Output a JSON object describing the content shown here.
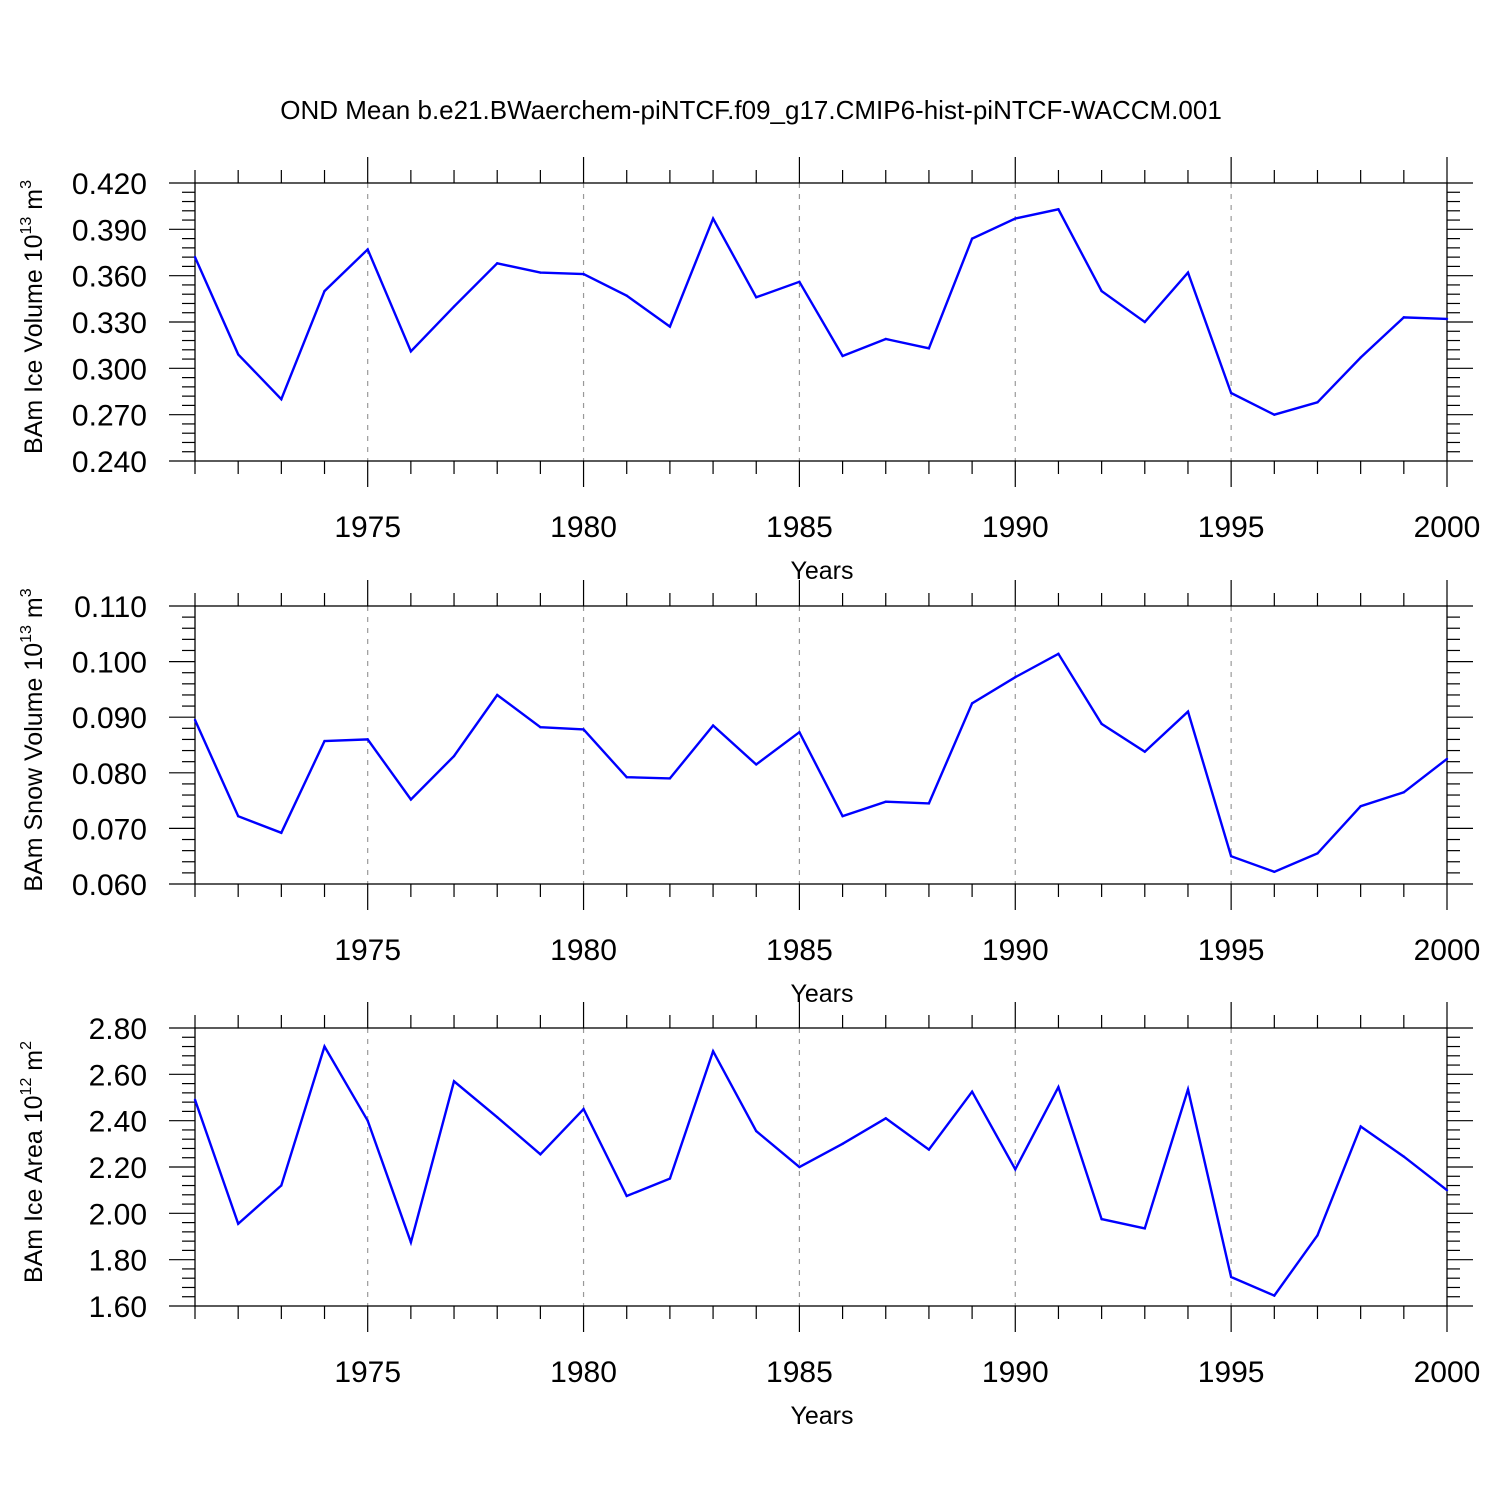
{
  "figure_title": "OND Mean b.e21.BWaerchem-piNTCF.f09_g17.CMIP6-hist-piNTCF-WACCM.001",
  "colors": {
    "series": "#0000ff",
    "axes": "#000000",
    "grid": "#999999"
  },
  "chart_data": [
    {
      "type": "line",
      "title": "",
      "xlabel": "Years",
      "ylabel": {
        "text": "BAm Ice Volume 10",
        "exp": "13",
        "unit": " m",
        "unit_exp": "3"
      },
      "x": [
        1971,
        1972,
        1973,
        1974,
        1975,
        1976,
        1977,
        1978,
        1979,
        1980,
        1981,
        1982,
        1983,
        1984,
        1985,
        1986,
        1987,
        1988,
        1989,
        1990,
        1991,
        1992,
        1993,
        1994,
        1995,
        1996,
        1997,
        1998,
        1999,
        2000
      ],
      "values": [
        0.372,
        0.309,
        0.28,
        0.35,
        0.377,
        0.311,
        0.34,
        0.368,
        0.362,
        0.361,
        0.347,
        0.327,
        0.397,
        0.346,
        0.356,
        0.308,
        0.319,
        0.313,
        0.384,
        0.397,
        0.403,
        0.35,
        0.33,
        0.362,
        0.284,
        0.27,
        0.278,
        0.307,
        0.333,
        0.332
      ],
      "xlim": [
        1971,
        2000
      ],
      "ylim": [
        0.24,
        0.42
      ],
      "yticks": [
        "0.420",
        "0.390",
        "0.360",
        "0.330",
        "0.300",
        "0.270",
        "0.240"
      ],
      "ytick_values": [
        0.42,
        0.39,
        0.36,
        0.33,
        0.3,
        0.27,
        0.24
      ],
      "xticks": [
        "1975",
        "1980",
        "1985",
        "1990",
        "1995",
        "2000"
      ],
      "xtick_values": [
        1975,
        1980,
        1985,
        1990,
        1995,
        2000
      ],
      "grid": "vertical dashed at labeled years"
    },
    {
      "type": "line",
      "title": "",
      "xlabel": "Years",
      "ylabel": {
        "text": "BAm Snow Volume 10",
        "exp": "13",
        "unit": " m",
        "unit_exp": "3"
      },
      "x": [
        1971,
        1972,
        1973,
        1974,
        1975,
        1976,
        1977,
        1978,
        1979,
        1980,
        1981,
        1982,
        1983,
        1984,
        1985,
        1986,
        1987,
        1988,
        1989,
        1990,
        1991,
        1992,
        1993,
        1994,
        1995,
        1996,
        1997,
        1998,
        1999,
        2000
      ],
      "values": [
        0.0895,
        0.0722,
        0.0692,
        0.0857,
        0.086,
        0.0752,
        0.083,
        0.094,
        0.0882,
        0.0878,
        0.0792,
        0.079,
        0.0885,
        0.0815,
        0.0873,
        0.0722,
        0.0748,
        0.0745,
        0.0925,
        0.0972,
        0.1014,
        0.0888,
        0.0838,
        0.091,
        0.065,
        0.0622,
        0.0655,
        0.074,
        0.0765,
        0.0825
      ],
      "xlim": [
        1971,
        2000
      ],
      "ylim": [
        0.06,
        0.11
      ],
      "yticks": [
        "0.110",
        "0.100",
        "0.090",
        "0.080",
        "0.070",
        "0.060"
      ],
      "ytick_values": [
        0.11,
        0.1,
        0.09,
        0.08,
        0.07,
        0.06
      ],
      "xticks": [
        "1975",
        "1980",
        "1985",
        "1990",
        "1995",
        "2000"
      ],
      "xtick_values": [
        1975,
        1980,
        1985,
        1990,
        1995,
        2000
      ],
      "grid": "vertical dashed at labeled years"
    },
    {
      "type": "line",
      "title": "",
      "xlabel": "Years",
      "ylabel": {
        "text": "BAm Ice Area 10",
        "exp": "12",
        "unit": " m",
        "unit_exp": "2"
      },
      "x": [
        1971,
        1972,
        1973,
        1974,
        1975,
        1976,
        1977,
        1978,
        1979,
        1980,
        1981,
        1982,
        1983,
        1984,
        1985,
        1986,
        1987,
        1988,
        1989,
        1990,
        1991,
        1992,
        1993,
        1994,
        1995,
        1996,
        1997,
        1998,
        1999,
        2000
      ],
      "values": [
        2.49,
        1.955,
        2.12,
        2.72,
        2.4,
        1.875,
        2.57,
        2.415,
        2.255,
        2.45,
        2.075,
        2.15,
        2.7,
        2.355,
        2.2,
        2.3,
        2.41,
        2.275,
        2.525,
        2.19,
        2.545,
        1.975,
        1.935,
        2.535,
        1.725,
        1.645,
        1.905,
        2.375,
        2.245,
        2.1
      ],
      "xlim": [
        1971,
        2000
      ],
      "ylim": [
        1.6,
        2.8
      ],
      "yticks": [
        "2.80",
        "2.60",
        "2.40",
        "2.20",
        "2.00",
        "1.80",
        "1.60"
      ],
      "ytick_values": [
        2.8,
        2.6,
        2.4,
        2.2,
        2.0,
        1.8,
        1.6
      ],
      "xticks": [
        "1975",
        "1980",
        "1985",
        "1990",
        "1995",
        "2000"
      ],
      "xtick_values": [
        1975,
        1980,
        1985,
        1990,
        1995,
        2000
      ],
      "grid": "vertical dashed at labeled years"
    }
  ]
}
